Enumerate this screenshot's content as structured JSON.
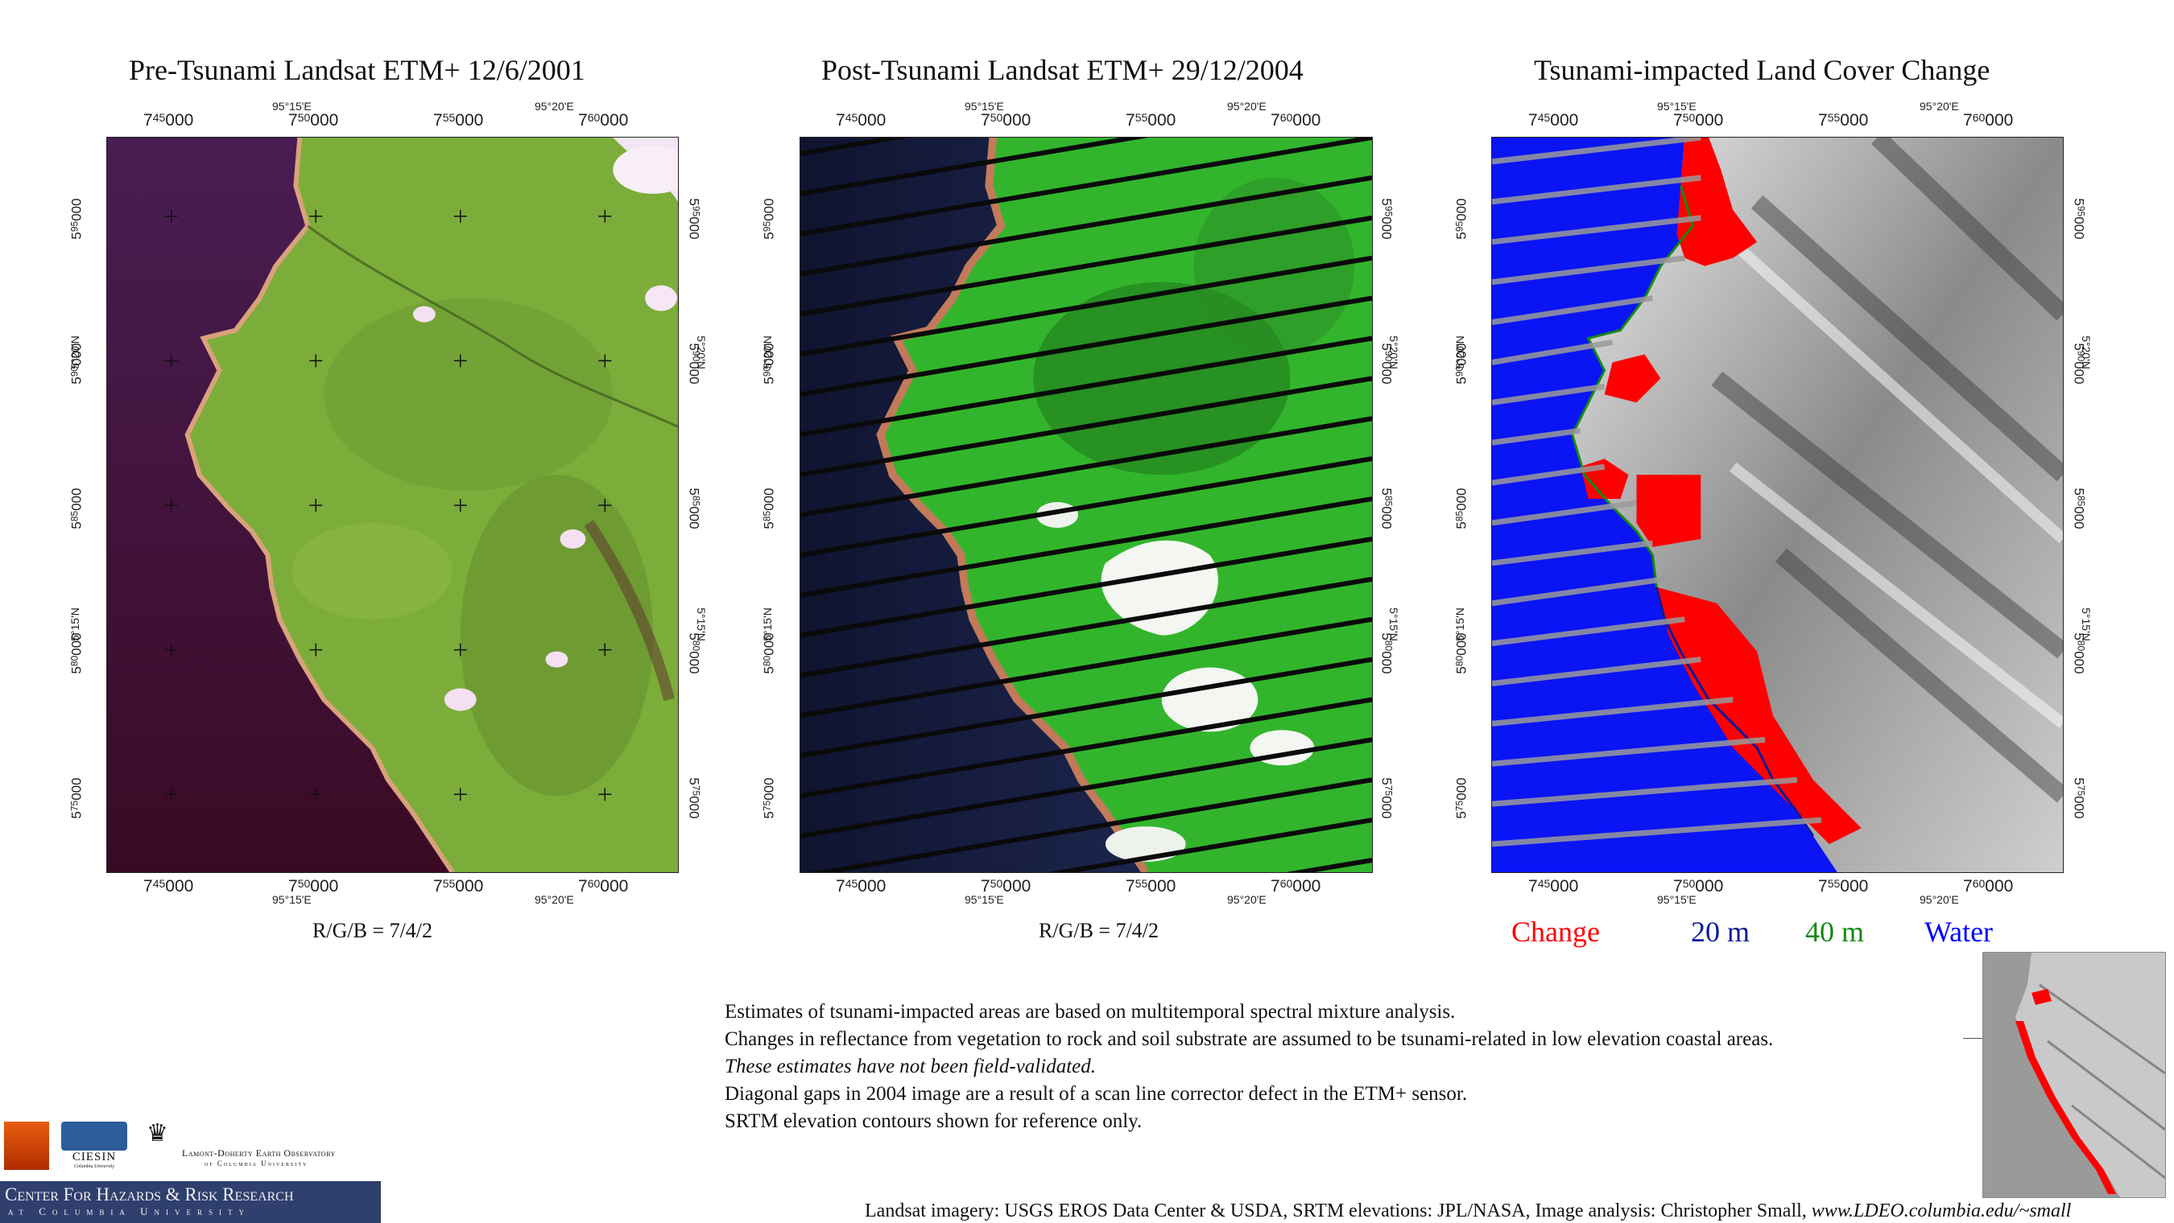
{
  "panels": [
    {
      "title": "Pre-Tsunami  Landsat ETM+    12/6/2001",
      "caption": "R/G/B = 7/4/2"
    },
    {
      "title": "Post-Tsunami  Landsat ETM+  29/12/2004",
      "caption": "R/G/B = 7/4/2"
    },
    {
      "title": "Tsunami-impacted Land Cover Change"
    }
  ],
  "easting_ticks": [
    {
      "main": "7",
      "sup": "45",
      "tail": "000"
    },
    {
      "main": "7",
      "sup": "50",
      "tail": "000"
    },
    {
      "main": "7",
      "sup": "55",
      "tail": "000"
    },
    {
      "main": "7",
      "sup": "60",
      "tail": "000"
    }
  ],
  "northing_ticks": [
    {
      "main": "5",
      "sup": "95",
      "tail": "000"
    },
    {
      "main": "5",
      "sup": "90",
      "tail": "000"
    },
    {
      "main": "5",
      "sup": "85",
      "tail": "000"
    },
    {
      "main": "5",
      "sup": "80",
      "tail": "000"
    },
    {
      "main": "5",
      "sup": "75",
      "tail": "000"
    }
  ],
  "geo_labels": {
    "lon1": "95°15'E",
    "lon2": "95°20'E",
    "lat1": "5°20'N",
    "lat2": "5°15'N"
  },
  "legend": [
    {
      "label": "Change",
      "color": "#ff0000"
    },
    {
      "label": "20 m",
      "color": "#0a1a9a"
    },
    {
      "label": "40 m",
      "color": "#138a13"
    },
    {
      "label": "Water",
      "color": "#0000ff"
    }
  ],
  "notes": [
    {
      "text": "Estimates of tsunami-impacted areas are based on multitemporal spectral mixture analysis.",
      "italic": false
    },
    {
      "text": "Changes in reflectance from vegetation to rock and soil substrate are assumed to be tsunami-related in low elevation coastal areas.",
      "italic": false
    },
    {
      "text": "These estimates have not been field-validated.",
      "italic": true
    },
    {
      "text": "Diagonal gaps in 2004 image are a result of a scan line corrector defect in the ETM+ sensor.",
      "italic": false
    },
    {
      "text": "SRTM elevation contours shown for reference only.",
      "italic": false
    }
  ],
  "credit": {
    "text": "Landsat imagery: USGS EROS Data Center & USDA,  SRTM elevations: JPL/NASA,   Image analysis:  Christopher Small,",
    "url": "www.LDEO.columbia.edu/~small"
  },
  "logos": {
    "ciesin": "CIESIN",
    "ciesin_sub": "Columbia University",
    "ldeo_line1": "Lamont-Doherty Earth Observatory",
    "ldeo_line2": "of Columbia University",
    "chrr_line1": "Center For Hazards & Risk Research",
    "chrr_line2": "at Columbia University"
  },
  "colors": {
    "sea_pre": "#3a0f38",
    "land_pre": "#7cad3a",
    "sea_post": "#1c2550",
    "land_post": "#32b52c",
    "change": "#ff0000",
    "water": "#0000ff"
  }
}
